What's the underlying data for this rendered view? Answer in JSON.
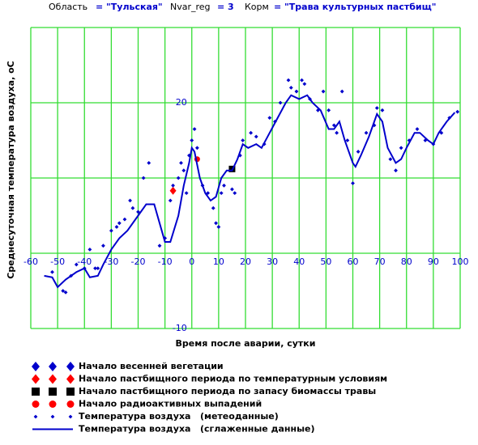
{
  "chart_data": {
    "type": "scatter-line",
    "header": [
      {
        "label": "Область",
        "value": "= \"Тульская\""
      },
      {
        "label": "Nvar_reg",
        "value": "= 3"
      },
      {
        "label": "Корм",
        "value": "= \"Трава культурных пастбищ\""
      }
    ],
    "y_label": "Среднесуточная температура воздуха, оС",
    "x_label": "Время после аварии, сутки",
    "xlim": [
      -60,
      100
    ],
    "ylim": [
      -10,
      30
    ],
    "xticks": [
      -60,
      -50,
      -40,
      -30,
      -20,
      -10,
      0,
      10,
      20,
      30,
      40,
      50,
      60,
      70,
      80,
      90,
      100
    ],
    "yticks": [
      -10,
      20
    ],
    "ygrid": [
      -10,
      0,
      10,
      20,
      30
    ],
    "grid_color": "#33dd33",
    "series": [
      {
        "name": "Начало весенней вегетации",
        "color": "#0000cc",
        "marker": "diamond",
        "x": [],
        "values": []
      },
      {
        "name": "Начало пастбищного периода по температурным условиям",
        "color": "#ff0000",
        "marker": "diamond",
        "x": [
          -7
        ],
        "values": [
          8.3
        ]
      },
      {
        "name": "Начало пастбищного периода по запасу биомассы травы",
        "color": "#000000",
        "marker": "square",
        "x": [
          15
        ],
        "values": [
          11.2
        ]
      },
      {
        "name": "Начало радиоактивных выпадений",
        "color": "#ff0000",
        "marker": "circle",
        "x": [
          2
        ],
        "values": [
          12.5
        ]
      },
      {
        "name": "Температура воздуха   (метеоданные)",
        "color": "#0000cc",
        "marker": "dot",
        "x": [
          -52,
          -48,
          -47,
          -45,
          -43,
          -40,
          -38,
          -36,
          -35,
          -33,
          -30,
          -28,
          -27,
          -25,
          -23,
          -22,
          -20,
          -18,
          -16,
          -12,
          -10,
          -8,
          -7,
          -5,
          -4,
          -3,
          -2,
          -1,
          0,
          1,
          2,
          4,
          6,
          8,
          9,
          10,
          11,
          12,
          15,
          16,
          18,
          19,
          22,
          24,
          27,
          29,
          31,
          33,
          36,
          37,
          39,
          41,
          42,
          44,
          47,
          49,
          51,
          53,
          54,
          56,
          58,
          60,
          62,
          65,
          68,
          69,
          71,
          74,
          76,
          78,
          81,
          84,
          87,
          90,
          93,
          96,
          99
        ],
        "values": [
          -2.5,
          -5,
          -5.2,
          -3,
          -1.5,
          -2,
          0.5,
          -2,
          -2,
          1,
          3,
          3.5,
          4,
          4.5,
          7,
          6,
          5.5,
          10,
          12,
          1,
          2,
          7,
          9,
          10,
          12,
          11,
          8,
          13,
          15,
          16.5,
          14,
          9,
          8,
          6,
          4,
          3.5,
          8,
          9,
          8.5,
          8,
          13,
          15,
          16,
          15.5,
          14.5,
          18,
          17.5,
          20,
          23,
          22,
          21.5,
          23,
          22.5,
          20.5,
          19,
          21.5,
          19,
          17,
          16,
          21.5,
          15,
          9.3,
          13.5,
          16,
          17,
          19.3,
          19,
          12.5,
          11,
          14,
          15,
          16.5,
          15,
          14.5,
          16,
          18,
          18.8
        ]
      },
      {
        "name": "Температура воздуха   (сглаженные данные)",
        "color": "#0000cc",
        "marker": "line",
        "x": [
          -55,
          -52,
          -50,
          -47,
          -43,
          -40,
          -38,
          -35,
          -33,
          -30,
          -27,
          -24,
          -20,
          -17,
          -14,
          -12,
          -10,
          -8,
          -5,
          -3,
          -1,
          0,
          1,
          3,
          5,
          7,
          9,
          11,
          13,
          15,
          17,
          19,
          21,
          24,
          26,
          29,
          32,
          35,
          37,
          40,
          43,
          45,
          48,
          51,
          53,
          55,
          57,
          60,
          61,
          63,
          66,
          69,
          71,
          73,
          76,
          78,
          80,
          83,
          85,
          88,
          90,
          92,
          95,
          98
        ],
        "values": [
          -3,
          -3.2,
          -4.5,
          -3.5,
          -2.5,
          -2,
          -3.2,
          -3,
          -1.5,
          0.5,
          2,
          3,
          5,
          6.5,
          6.5,
          4,
          1.5,
          1.5,
          5,
          9,
          12,
          14,
          13.5,
          10,
          8,
          7,
          7.5,
          10,
          11,
          11,
          12.5,
          14.5,
          14,
          14.5,
          14,
          16,
          18,
          20,
          21,
          20.5,
          21,
          20,
          19,
          16.5,
          16.5,
          17.5,
          15,
          12,
          11.5,
          13,
          15.5,
          18.5,
          17.5,
          14,
          12,
          12.5,
          14,
          16,
          16,
          15,
          14.5,
          16,
          17.5,
          18.7
        ]
      }
    ]
  }
}
